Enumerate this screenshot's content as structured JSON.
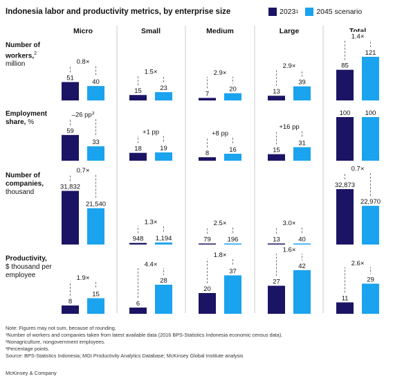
{
  "colors": {
    "y2023": "#1b1464",
    "y2045": "#1aa3ee",
    "divider": "#c8c8c8",
    "bracket": "#777777"
  },
  "header": {
    "title": "Indonesia labor and productivity metrics, by enterprise size",
    "legend_2023": "2023",
    "legend_2023_sup": "1",
    "legend_2045": "2045 scenario"
  },
  "columns": [
    "Micro",
    "Small",
    "Medium",
    "Large",
    "Total"
  ],
  "rows": [
    {
      "label": "Number of workers,",
      "label_sup": "2",
      "unit": "million"
    },
    {
      "label": "Employment share,",
      "label_sup": "",
      "unit": "%"
    },
    {
      "label": "Number of companies,",
      "label_sup": "",
      "unit": "thousand"
    },
    {
      "label": "Productivity,",
      "label_sup": "",
      "unit": "$ thousand per employee"
    }
  ],
  "chart_data": {
    "type": "bar",
    "series_names": [
      "2023",
      "2045 scenario"
    ],
    "columns": [
      "Micro",
      "Small",
      "Medium",
      "Large",
      "Total"
    ],
    "rows": [
      {
        "metric": "Number of workers, million",
        "values_2023": [
          51,
          15,
          7,
          13,
          85
        ],
        "values_2045": [
          40,
          23,
          20,
          39,
          121
        ],
        "labels_2023": [
          "51",
          "15",
          "7",
          "13",
          "85"
        ],
        "labels_2045": [
          "40",
          "23",
          "20",
          "39",
          "121"
        ],
        "changes": [
          "0.8×",
          "1.5×",
          "2.9×",
          "2.9×",
          "1.4×"
        ],
        "change_sups": [
          "",
          "",
          "",
          "",
          ""
        ]
      },
      {
        "metric": "Employment share, %",
        "values_2023": [
          59,
          18,
          8,
          15,
          100
        ],
        "values_2045": [
          33,
          19,
          16,
          31,
          100
        ],
        "labels_2023": [
          "59",
          "18",
          "8",
          "15",
          "100"
        ],
        "labels_2045": [
          "33",
          "19",
          "16",
          "31",
          "100"
        ],
        "changes": [
          "–26 pp",
          "+1 pp",
          "+8 pp",
          "+16 pp",
          ""
        ],
        "change_sups": [
          "3",
          "",
          "",
          "",
          ""
        ]
      },
      {
        "metric": "Number of companies, thousand",
        "values_2023": [
          31832,
          948,
          79,
          13,
          32873
        ],
        "values_2045": [
          21540,
          1194,
          196,
          40,
          22970
        ],
        "labels_2023": [
          "31,832",
          "948",
          "79",
          "13",
          "32,873"
        ],
        "labels_2045": [
          "21,540",
          "1,194",
          "196",
          "40",
          "22,970"
        ],
        "changes": [
          "0.7×",
          "1.3×",
          "2.5×",
          "3.0×",
          "0.7×"
        ],
        "change_sups": [
          "",
          "",
          "",
          "",
          ""
        ]
      },
      {
        "metric": "Productivity, $ thousand per employee",
        "values_2023": [
          8,
          6,
          20,
          27,
          11
        ],
        "values_2045": [
          15,
          28,
          37,
          42,
          29
        ],
        "labels_2023": [
          "8",
          "6",
          "20",
          "27",
          "11"
        ],
        "labels_2045": [
          "15",
          "28",
          "37",
          "42",
          "29"
        ],
        "changes": [
          "1.9×",
          "4.4×",
          "1.8×",
          "1.6×",
          "2.6×"
        ],
        "change_sups": [
          "",
          "",
          "",
          "",
          ""
        ]
      }
    ]
  },
  "notes": [
    "Note: Figures may not sum, because of rounding.",
    "¹Number of workers and companies taken from latest available data (2016 BPS-Statistics Indonesia economic census data).",
    "²Nonagriculture, nongovernment employees.",
    "³Percentage points.",
    "Source: BPS-Statistics Indonesia; MGI Productivity Analytics Database; McKinsey Global Institute analysis"
  ],
  "footer": "McKinsey & Company"
}
